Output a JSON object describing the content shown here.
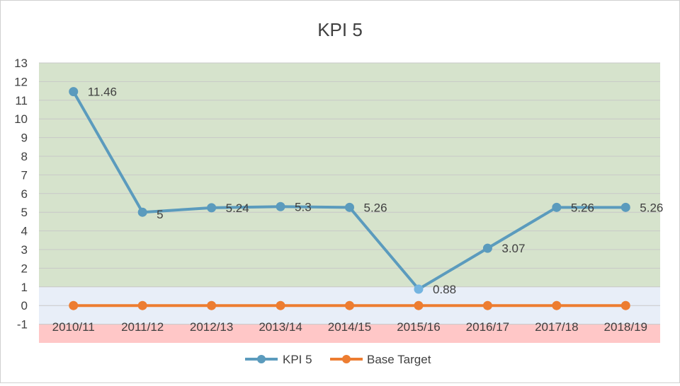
{
  "chart_data": {
    "type": "line",
    "title": "KPI 5",
    "categories": [
      "2010/11",
      "2011/12",
      "2012/13",
      "2013/14",
      "2014/15",
      "2015/16",
      "2016/17",
      "2017/18",
      "2018/19"
    ],
    "series": [
      {
        "name": "KPI 5",
        "color": "#5b9bbd",
        "values": [
          11.46,
          5,
          5.24,
          5.3,
          5.26,
          0.88,
          3.07,
          5.26,
          5.26
        ],
        "labels": [
          "11.46",
          "5",
          "5.24",
          "5.3",
          "5.26",
          "0.88",
          "3.07",
          "5.26",
          "5.26"
        ]
      },
      {
        "name": "Base Target",
        "color": "#ed7d31",
        "values": [
          0,
          0,
          0,
          0,
          0,
          0,
          0,
          0,
          0
        ]
      }
    ],
    "ylim": [
      -1,
      13
    ],
    "yticks": [
      -1,
      0,
      1,
      2,
      3,
      4,
      5,
      6,
      7,
      8,
      9,
      10,
      11,
      12,
      13
    ],
    "bands": [
      {
        "name": "green-band",
        "from": 1,
        "to": 13,
        "color": "#d6e3cc"
      },
      {
        "name": "blue-band",
        "from": 0,
        "to": 1,
        "color": "#e8eef8"
      },
      {
        "name": "blue-band-lower",
        "from": -1,
        "to": 0,
        "color": "#e8eef8"
      },
      {
        "name": "red-band",
        "from": -2,
        "to": -1,
        "color": "#ffc7c7"
      }
    ],
    "highlight_point_color": "#74b4e0",
    "grid": true,
    "legend_position": "bottom"
  }
}
